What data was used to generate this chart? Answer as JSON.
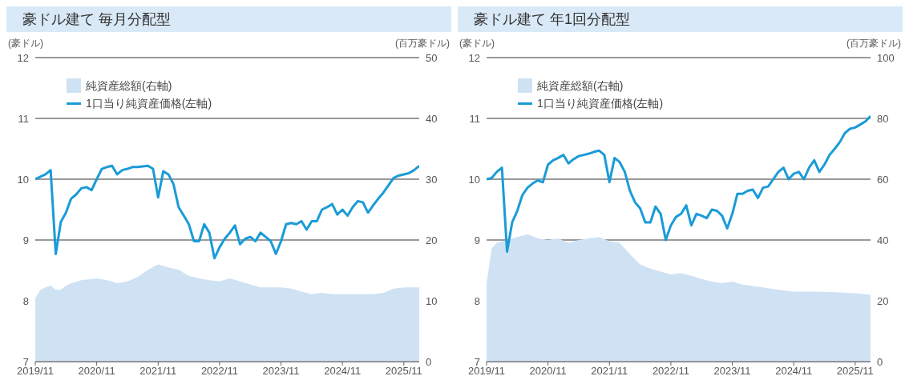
{
  "chart_data": [
    {
      "type": "line",
      "title": "豪ドル建て 毎月分配型",
      "ylabel": "(豪ドル)",
      "y2label": "(百万豪ドル)",
      "grid": "y",
      "legend": "top left",
      "marker": "none",
      "line_style": "solid",
      "xlim": [
        "2019-11",
        "2026-02"
      ],
      "xticks": [
        {
          "value": "2019-11",
          "label": "2019/11"
        },
        {
          "value": "2020-11",
          "label": "2020/11"
        },
        {
          "value": "2021-11",
          "label": "2021/11"
        },
        {
          "value": "2022-11",
          "label": "2022/11"
        },
        {
          "value": "2023-11",
          "label": "2023/11"
        },
        {
          "value": "2024-11",
          "label": "2024/11"
        },
        {
          "value": "2025-11",
          "label": "2025/11"
        }
      ],
      "ylim": [
        7,
        12
      ],
      "yticks": [
        7,
        8,
        9,
        10,
        11,
        12
      ],
      "y2lim": [
        0,
        50
      ],
      "y2ticks": [
        0,
        10,
        20,
        30,
        40,
        50
      ],
      "series": [
        {
          "name": "純資産総額(右軸)",
          "type": "area",
          "axis": "y2",
          "color": "#cfe2f4",
          "x": [
            "2019-11",
            "2019-12",
            "2020-01",
            "2020-02",
            "2020-03",
            "2020-04",
            "2020-05",
            "2020-06",
            "2020-08",
            "2020-11",
            "2021-01",
            "2021-03",
            "2021-05",
            "2021-07",
            "2021-09",
            "2021-11",
            "2022-01",
            "2022-03",
            "2022-05",
            "2022-07",
            "2022-09",
            "2022-11",
            "2023-01",
            "2023-03",
            "2023-05",
            "2023-07",
            "2023-09",
            "2023-11",
            "2024-01",
            "2024-03",
            "2024-05",
            "2024-07",
            "2024-09",
            "2024-11",
            "2025-01",
            "2025-03",
            "2025-05",
            "2025-07",
            "2025-09",
            "2025-11",
            "2026-02"
          ],
          "values": [
            10.4,
            11.8,
            12.2,
            12.5,
            11.8,
            11.8,
            12.5,
            12.9,
            13.4,
            13.7,
            13.4,
            12.9,
            13.2,
            13.9,
            15.1,
            16.0,
            15.5,
            15.1,
            14.1,
            13.7,
            13.4,
            13.2,
            13.7,
            13.2,
            12.7,
            12.2,
            12.2,
            12.2,
            12.0,
            11.5,
            11.1,
            11.3,
            11.1,
            11.1,
            11.1,
            11.1,
            11.1,
            11.3,
            12.0,
            12.2,
            12.2
          ]
        },
        {
          "name": "1口当り純資産価格(左軸)",
          "type": "line",
          "color": "#1a9bd7",
          "x": [
            "2019-11",
            "2020-01",
            "2020-02",
            "2020-03",
            "2020-04",
            "2020-05",
            "2020-06",
            "2020-07",
            "2020-08",
            "2020-09",
            "2020-10",
            "2020-11",
            "2020-12",
            "2021-01",
            "2021-02",
            "2021-03",
            "2021-04",
            "2021-05",
            "2021-06",
            "2021-07",
            "2021-08",
            "2021-09",
            "2021-10",
            "2021-11",
            "2021-12",
            "2022-01",
            "2022-02",
            "2022-03",
            "2022-04",
            "2022-05",
            "2022-06",
            "2022-07",
            "2022-08",
            "2022-09",
            "2022-10",
            "2022-11",
            "2022-12",
            "2023-01",
            "2023-02",
            "2023-03",
            "2023-04",
            "2023-05",
            "2023-06",
            "2023-07",
            "2023-08",
            "2023-09",
            "2023-10",
            "2023-11",
            "2023-12",
            "2024-01",
            "2024-02",
            "2024-03",
            "2024-04",
            "2024-05",
            "2024-06",
            "2024-07",
            "2024-08",
            "2024-09",
            "2024-10",
            "2024-11",
            "2024-12",
            "2025-01",
            "2025-02",
            "2025-03",
            "2025-04",
            "2025-05",
            "2025-06",
            "2025-07",
            "2025-08",
            "2025-09",
            "2025-10",
            "2025-11",
            "2025-12",
            "2026-01",
            "2026-02"
          ],
          "values": [
            10.0,
            10.08,
            10.15,
            8.77,
            9.3,
            9.45,
            9.68,
            9.75,
            9.85,
            9.87,
            9.82,
            10.0,
            10.17,
            10.2,
            10.22,
            10.08,
            10.15,
            10.17,
            10.2,
            10.2,
            10.21,
            10.22,
            10.17,
            9.7,
            10.13,
            10.08,
            9.92,
            9.54,
            9.4,
            9.26,
            8.98,
            8.98,
            9.26,
            9.12,
            8.7,
            8.88,
            9.02,
            9.12,
            9.24,
            8.93,
            9.02,
            9.05,
            8.98,
            9.12,
            9.05,
            8.98,
            8.77,
            8.98,
            9.26,
            9.28,
            9.26,
            9.31,
            9.17,
            9.31,
            9.31,
            9.5,
            9.54,
            9.59,
            9.42,
            9.5,
            9.4,
            9.54,
            9.64,
            9.62,
            9.45,
            9.57,
            9.68,
            9.78,
            9.9,
            10.02,
            10.06,
            10.08,
            10.1,
            10.15,
            10.22
          ]
        }
      ]
    },
    {
      "type": "line",
      "title": "豪ドル建て 年1回分配型",
      "ylabel": "(豪ドル)",
      "y2label": "(百万豪ドル)",
      "grid": "y",
      "legend": "top left",
      "marker": "none",
      "line_style": "solid",
      "xlim": [
        "2019-11",
        "2026-02"
      ],
      "xticks": [
        {
          "value": "2019-11",
          "label": "2019/11"
        },
        {
          "value": "2020-11",
          "label": "2020/11"
        },
        {
          "value": "2021-11",
          "label": "2021/11"
        },
        {
          "value": "2022-11",
          "label": "2022/11"
        },
        {
          "value": "2023-11",
          "label": "2023/11"
        },
        {
          "value": "2024-11",
          "label": "2024/11"
        },
        {
          "value": "2025-11",
          "label": "2025/11"
        }
      ],
      "ylim": [
        7,
        12
      ],
      "yticks": [
        7,
        8,
        9,
        10,
        11,
        12
      ],
      "y2lim": [
        0,
        100
      ],
      "y2ticks": [
        0,
        20,
        40,
        60,
        80,
        100
      ],
      "series": [
        {
          "name": "純資産総額(右軸)",
          "type": "area",
          "axis": "y2",
          "color": "#cfe2f4",
          "x": [
            "2019-11",
            "2019-12",
            "2020-01",
            "2020-03",
            "2020-05",
            "2020-07",
            "2020-09",
            "2020-11",
            "2021-01",
            "2021-03",
            "2021-05",
            "2021-07",
            "2021-09",
            "2021-11",
            "2022-01",
            "2022-03",
            "2022-05",
            "2022-07",
            "2022-09",
            "2022-11",
            "2023-01",
            "2023-03",
            "2023-05",
            "2023-07",
            "2023-09",
            "2023-11",
            "2024-01",
            "2024-03",
            "2024-05",
            "2024-07",
            "2024-09",
            "2024-11",
            "2025-03",
            "2025-07",
            "2025-11",
            "2026-02"
          ],
          "values": [
            25.8,
            37.2,
            39.1,
            40.0,
            41.0,
            41.9,
            40.5,
            40.0,
            40.5,
            39.1,
            40.0,
            40.5,
            41.0,
            39.6,
            39.1,
            35.3,
            32.0,
            30.6,
            29.6,
            28.7,
            29.1,
            28.2,
            27.2,
            26.3,
            25.8,
            26.3,
            25.3,
            24.9,
            24.4,
            23.9,
            23.4,
            23.0,
            23.0,
            22.8,
            22.5,
            22.0
          ]
        },
        {
          "name": "1口当り純資産価格(左軸)",
          "type": "line",
          "color": "#1a9bd7",
          "x": [
            "2019-11",
            "2019-12",
            "2020-01",
            "2020-02",
            "2020-03",
            "2020-04",
            "2020-05",
            "2020-06",
            "2020-07",
            "2020-08",
            "2020-09",
            "2020-10",
            "2020-11",
            "2020-12",
            "2021-01",
            "2021-02",
            "2021-03",
            "2021-04",
            "2021-05",
            "2021-06",
            "2021-07",
            "2021-08",
            "2021-09",
            "2021-10",
            "2021-11",
            "2021-12",
            "2022-01",
            "2022-02",
            "2022-03",
            "2022-04",
            "2022-05",
            "2022-06",
            "2022-07",
            "2022-08",
            "2022-09",
            "2022-10",
            "2022-11",
            "2022-12",
            "2023-01",
            "2023-02",
            "2023-03",
            "2023-04",
            "2023-05",
            "2023-06",
            "2023-07",
            "2023-08",
            "2023-09",
            "2023-10",
            "2023-11",
            "2023-12",
            "2024-01",
            "2024-02",
            "2024-03",
            "2024-04",
            "2024-05",
            "2024-06",
            "2024-07",
            "2024-08",
            "2024-09",
            "2024-10",
            "2024-11",
            "2024-12",
            "2025-01",
            "2025-02",
            "2025-03",
            "2025-04",
            "2025-05",
            "2025-06",
            "2025-07",
            "2025-08",
            "2025-09",
            "2025-10",
            "2025-11",
            "2025-12",
            "2026-01",
            "2026-02"
          ],
          "values": [
            10.0,
            10.02,
            10.12,
            10.19,
            8.81,
            9.29,
            9.48,
            9.74,
            9.86,
            9.93,
            9.98,
            9.95,
            10.24,
            10.31,
            10.35,
            10.4,
            10.26,
            10.33,
            10.38,
            10.4,
            10.42,
            10.45,
            10.47,
            10.4,
            9.95,
            10.35,
            10.28,
            10.12,
            9.81,
            9.62,
            9.52,
            9.29,
            9.29,
            9.55,
            9.43,
            9.0,
            9.24,
            9.38,
            9.43,
            9.57,
            9.24,
            9.43,
            9.4,
            9.36,
            9.5,
            9.48,
            9.4,
            9.19,
            9.43,
            9.76,
            9.76,
            9.81,
            9.83,
            9.69,
            9.86,
            9.88,
            10.0,
            10.12,
            10.19,
            10.0,
            10.09,
            10.12,
            10.0,
            10.19,
            10.31,
            10.12,
            10.24,
            10.4,
            10.5,
            10.61,
            10.76,
            10.83,
            10.85,
            10.9,
            10.95,
            11.04
          ]
        }
      ]
    }
  ]
}
